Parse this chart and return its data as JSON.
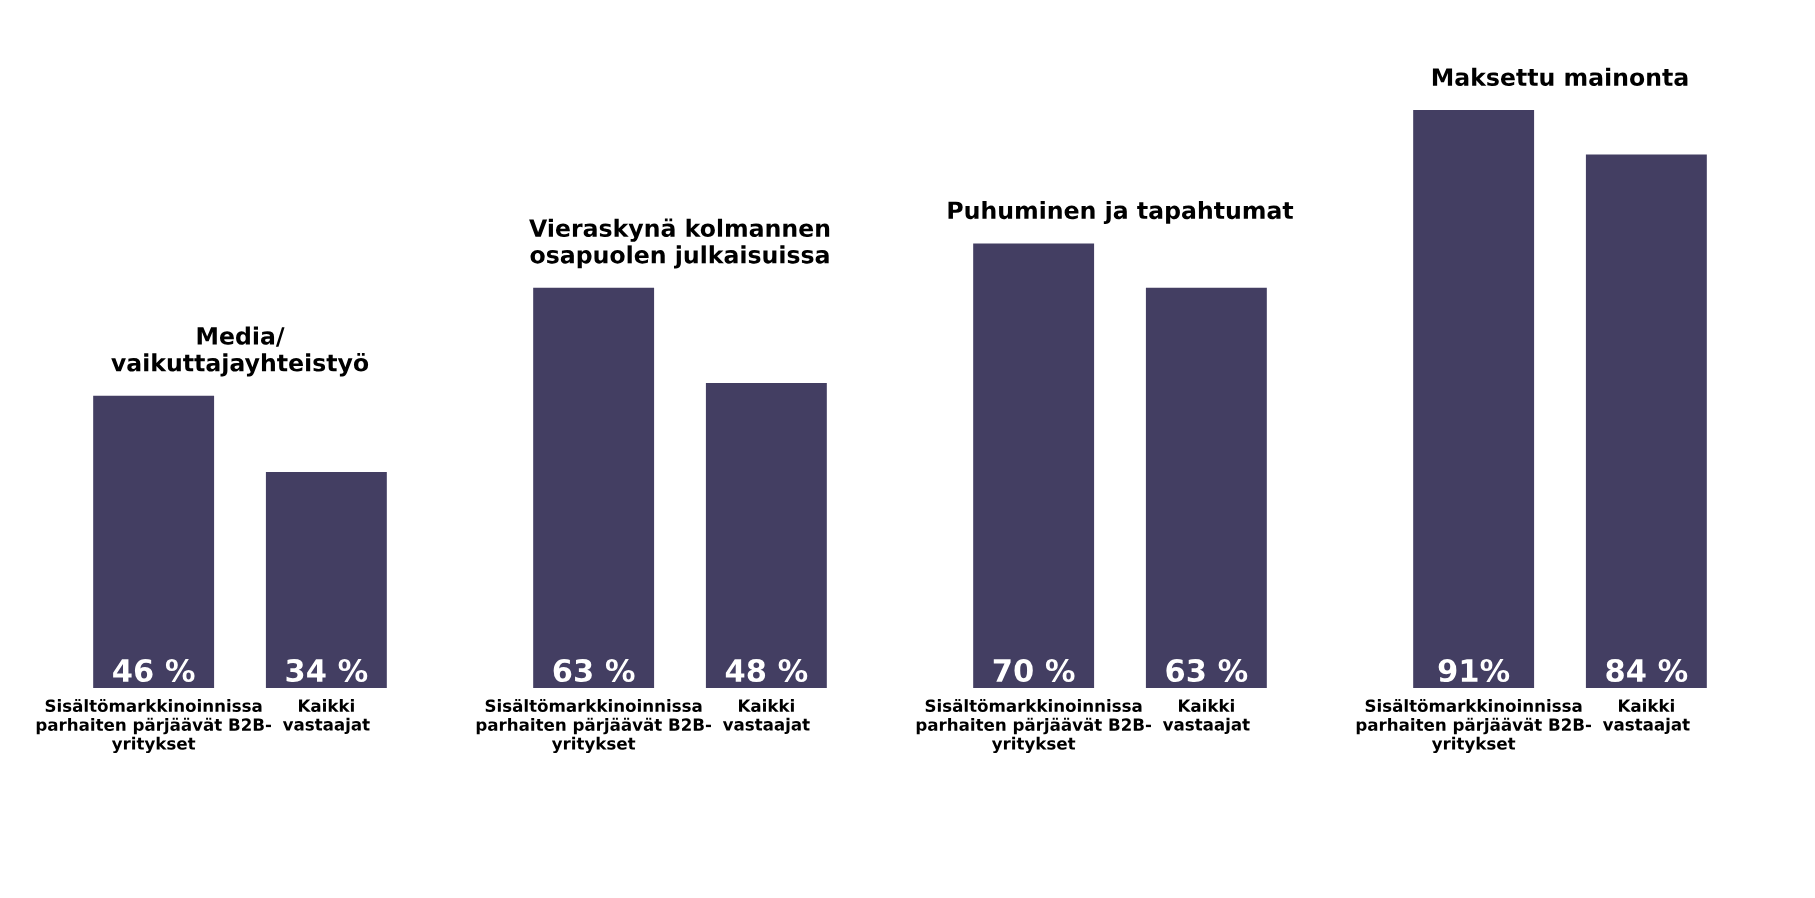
{
  "chart_data": [
    {
      "type": "bar",
      "title": "Media/\nvaikuttajayhteistyö",
      "categories": [
        "Sisältömarkkinoinnissa\nparhaiten pärjäävät B2B-\nyritykset",
        "Kaikki\nvastaajat"
      ],
      "values": [
        46,
        34
      ],
      "value_labels": [
        "46 %",
        "34 %"
      ],
      "color": "#433e62",
      "tick_labels": "x",
      "grid": false,
      "legend": false
    },
    {
      "type": "bar",
      "title": "Vieraskynä kolmannen\nosapuolen julkaisuissa",
      "categories": [
        "Sisältömarkkinoinnissa\nparhaiten pärjäävät B2B-\nyritykset",
        "Kaikki\nvastaajat"
      ],
      "values": [
        63,
        48
      ],
      "value_labels": [
        "63 %",
        "48 %"
      ],
      "color": "#433e62",
      "tick_labels": "x",
      "grid": false,
      "legend": false
    },
    {
      "type": "bar",
      "title": "Puhuminen ja tapahtumat",
      "categories": [
        "Sisältömarkkinoinnissa\nparhaiten pärjäävät B2B-\nyritykset",
        "Kaikki\nvastaajat"
      ],
      "values": [
        70,
        63
      ],
      "value_labels": [
        "70 %",
        "63 %"
      ],
      "color": "#433e62",
      "tick_labels": "x",
      "grid": false,
      "legend": false
    },
    {
      "type": "bar",
      "title": "Maksettu mainonta",
      "categories": [
        "Sisältömarkkinoinnissa\nparhaiten pärjäävät B2B-\nyritykset",
        "Kaikki\nvastaajat"
      ],
      "values": [
        91,
        84
      ],
      "value_labels": [
        "91%",
        "84 %"
      ],
      "color": "#433e62",
      "tick_labels": "x",
      "grid": false,
      "legend": false
    }
  ]
}
